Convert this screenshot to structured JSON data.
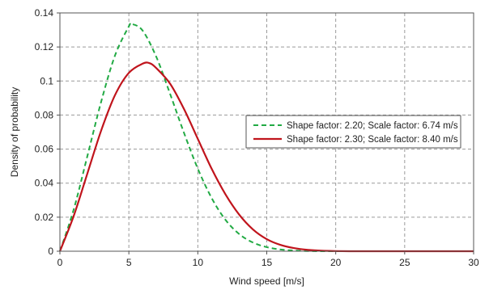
{
  "chart_data": {
    "type": "line",
    "title": "",
    "xlabel": "Wind speed [m/s]",
    "ylabel": "Density of probability",
    "xlim": [
      0,
      30
    ],
    "ylim": [
      0,
      0.14
    ],
    "xticks": [
      0,
      5,
      10,
      15,
      20,
      25,
      30
    ],
    "xtick_labels": [
      "0",
      "5",
      "10",
      "15",
      "20",
      "25",
      "30"
    ],
    "yticks": [
      0,
      0.02,
      0.04,
      0.06,
      0.08,
      0.1,
      0.12,
      0.14
    ],
    "ytick_labels": [
      "0",
      "0.02",
      "0.04",
      "0.06",
      "0.08",
      "0.1",
      "0.12",
      "0.14"
    ],
    "grid": true,
    "legend_position": "center-right",
    "series": [
      {
        "name": "Shape factor: 2.20; Scale factor: 6.74 m/s",
        "color": "#22aa44",
        "dash": "dashed",
        "x": [
          0,
          1,
          2,
          3,
          4,
          5,
          5.2,
          6,
          7,
          8,
          9,
          10,
          11,
          12,
          13,
          14,
          15,
          16,
          17,
          18,
          19,
          20,
          22,
          25,
          30
        ],
        "y": [
          0,
          0.0245,
          0.0562,
          0.0881,
          0.1151,
          0.1321,
          0.1335,
          0.1296,
          0.114,
          0.0922,
          0.0695,
          0.0485,
          0.0313,
          0.0185,
          0.0101,
          0.0051,
          0.0024,
          0.001,
          0.0004,
          0.0001,
          0.0,
          0,
          0,
          0,
          0
        ]
      },
      {
        "name": "Shape factor: 2.30; Scale factor: 8.40 m/s",
        "color": "#c0141c",
        "dash": "solid",
        "x": [
          0,
          1,
          2,
          3,
          4,
          5,
          6,
          6.5,
          7,
          8,
          9,
          10,
          11,
          12,
          13,
          14,
          15,
          16,
          17,
          18,
          19,
          20,
          21,
          22,
          25,
          30
        ],
        "y": [
          0,
          0.0207,
          0.0459,
          0.0711,
          0.0918,
          0.1048,
          0.1102,
          0.1105,
          0.1075,
          0.0983,
          0.0835,
          0.066,
          0.0485,
          0.0335,
          0.0215,
          0.0128,
          0.0071,
          0.0037,
          0.0018,
          0.0008,
          0.0003,
          0.0001,
          0.0,
          0,
          0,
          0
        ]
      }
    ]
  }
}
